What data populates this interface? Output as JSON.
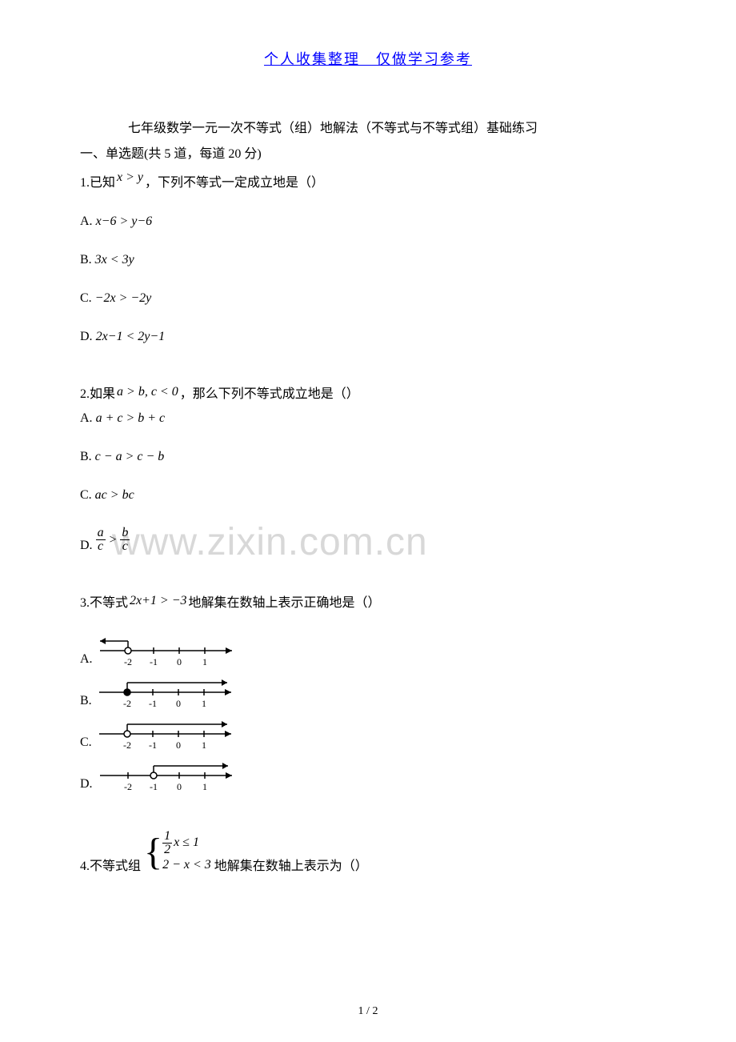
{
  "header": "个人收集整理　仅做学习参考",
  "title": "七年级数学一元一次不等式（组）地解法（不等式与不等式组）基础练习",
  "section": "一、单选题(共 5 道，每道 20 分)",
  "q1": {
    "stem_prefix": "1.已知",
    "stem_math": "x > y",
    "stem_suffix": "，下列不等式一定成立地是（）",
    "a_label": "A.",
    "a_math": "x−6 > y−6",
    "b_label": "B.",
    "b_math": "3x < 3y",
    "c_label": "C.",
    "c_math": "−2x > −2y",
    "d_label": "D.",
    "d_math": "2x−1 < 2y−1"
  },
  "q2": {
    "stem_prefix": "2.如果",
    "stem_math": "a > b, c < 0",
    "stem_suffix": "，那么下列不等式成立地是（）",
    "a_label": "A.",
    "a_math": "a + c > b + c",
    "b_label": "B.",
    "b_math": "c − a > c − b",
    "c_label": "C.",
    "c_math": "ac > bc",
    "d_label": "D.",
    "d_math_frac": {
      "left_num": "a",
      "left_den": "c",
      "op": ">",
      "right_num": "b",
      "right_den": "c"
    }
  },
  "q3": {
    "stem_prefix": "3.不等式",
    "stem_math": "2x+1 > −3",
    "stem_suffix": "地解集在数轴上表示正确地是（）",
    "a_label": "A.",
    "b_label": "B.",
    "c_label": "C.",
    "d_label": "D.",
    "ticks": [
      "-2",
      "-1",
      "0",
      "1"
    ],
    "options": {
      "A": {
        "boundary": -2,
        "open": true,
        "dir": "left"
      },
      "B": {
        "boundary": -2,
        "open": false,
        "dir": "right"
      },
      "C": {
        "boundary": -2,
        "open": true,
        "dir": "right"
      },
      "D": {
        "boundary": -1,
        "open": true,
        "dir": "right"
      }
    },
    "line_color": "#000000",
    "tick_fontsize": 12
  },
  "q4": {
    "stem_prefix": "4.不等式组",
    "system_line1_frac": {
      "num": "1",
      "den": "2"
    },
    "system_line1_rest": "x ≤ 1",
    "system_line2": "2 − x < 3",
    "stem_suffix": "地解集在数轴上表示为（）"
  },
  "watermark": "www.zixin.com.cn",
  "page_num": "1 / 2",
  "colors": {
    "header": "#0000ff",
    "text": "#000000",
    "watermark": "#d8d8d8",
    "background": "#ffffff"
  }
}
